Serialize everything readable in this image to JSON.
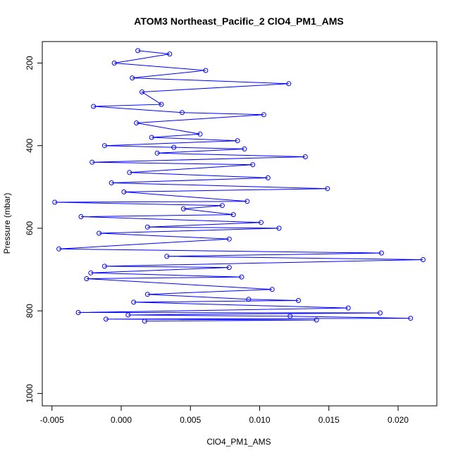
{
  "chart_data": {
    "type": "scatter",
    "title": "ATOM3 Northeast_Pacific_2 ClO4_PM1_AMS",
    "xlabel": "ClO4_PM1_AMS",
    "ylabel": "Pressure (mbar)",
    "xlim": [
      -0.0057,
      0.0228
    ],
    "ylim": [
      1030,
      148
    ],
    "y_reversed": true,
    "x_ticks": [
      {
        "value": -0.005,
        "label": "-0.005"
      },
      {
        "value": 0.0,
        "label": "0.000"
      },
      {
        "value": 0.005,
        "label": "0.005"
      },
      {
        "value": 0.01,
        "label": "0.010"
      },
      {
        "value": 0.015,
        "label": "0.015"
      },
      {
        "value": 0.02,
        "label": "0.020"
      }
    ],
    "y_ticks": [
      {
        "value": 200,
        "label": "200"
      },
      {
        "value": 400,
        "label": "400"
      },
      {
        "value": 600,
        "label": "600"
      },
      {
        "value": 800,
        "label": "800"
      },
      {
        "value": 1000,
        "label": "1000"
      }
    ],
    "grid": false,
    "marker": "open-circle",
    "connected_line": true,
    "series_color": "#0000ff",
    "series": [
      {
        "x": [
          0.0012,
          0.0035,
          -0.0005,
          0.0061,
          0.0008,
          0.0121,
          0.0015,
          0.0029,
          -0.002,
          0.0044,
          0.0103,
          0.0011,
          0.0057,
          0.0022,
          0.0084,
          -0.0012,
          0.0038,
          0.0089,
          0.0026,
          0.0133,
          -0.0021,
          0.0095,
          0.0006,
          0.0106,
          -0.0007,
          0.0149,
          0.0002,
          0.0091,
          -0.0048,
          0.0073,
          0.0045,
          0.0081,
          -0.0029,
          0.0101,
          0.0019,
          0.0114,
          -0.0016,
          0.0078,
          -0.0045,
          0.0188,
          0.0033,
          0.0218,
          -0.0012,
          0.0078,
          -0.0022,
          0.0087,
          -0.0025,
          0.0109,
          0.0019,
          0.0092,
          0.0128,
          0.0009,
          0.0164,
          -0.0031,
          0.0187,
          0.0005,
          0.0122,
          0.0209,
          -0.0011,
          0.0141,
          0.0017
        ],
        "y": [
          170,
          178,
          200,
          218,
          236,
          250,
          270,
          300,
          305,
          320,
          325,
          345,
          372,
          380,
          388,
          400,
          404,
          408,
          418,
          427,
          440,
          446,
          465,
          478,
          490,
          504,
          512,
          535,
          537,
          545,
          553,
          567,
          572,
          586,
          597,
          600,
          612,
          626,
          650,
          660,
          668,
          676,
          692,
          695,
          708,
          718,
          722,
          748,
          760,
          772,
          775,
          779,
          793,
          804,
          805,
          810,
          813,
          818,
          820,
          822,
          825
        ]
      }
    ]
  }
}
